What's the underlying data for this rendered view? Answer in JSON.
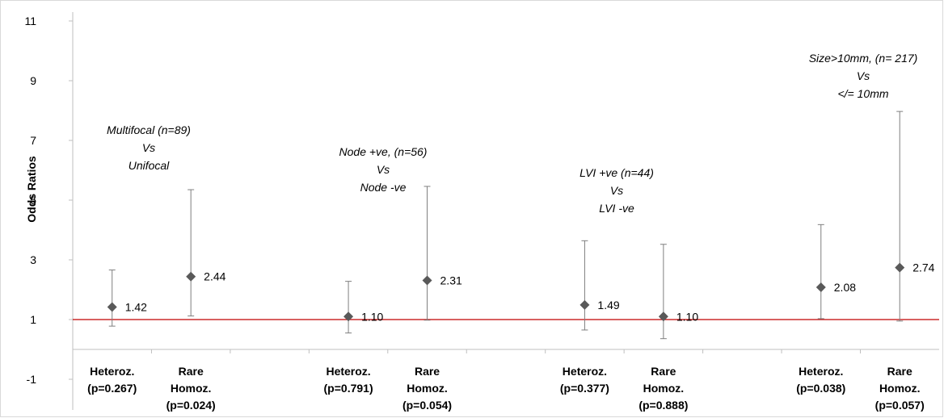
{
  "chart_data": {
    "type": "scatter",
    "ylabel": "Odds Ratios",
    "ylim": [
      -1,
      11
    ],
    "yticks": [
      -1,
      1,
      3,
      5,
      7,
      9,
      11
    ],
    "reference_line": {
      "y": 1,
      "color": "#c00000"
    },
    "marker_color": "#595959",
    "grid": false,
    "points": [
      {
        "lines": [
          "Heteroz.",
          "(p=0.267)"
        ],
        "or": 1.42,
        "label": "1.42",
        "ci": [
          0.78,
          2.66
        ]
      },
      {
        "lines": [
          "Rare",
          "Homoz.",
          "(p=0.024)"
        ],
        "or": 2.44,
        "label": "2.44",
        "ci": [
          1.12,
          5.35
        ]
      },
      {
        "lines": [
          "Heteroz.",
          "(p=0.791)"
        ],
        "or": 1.1,
        "label": "1.10",
        "ci": [
          0.55,
          2.28
        ]
      },
      {
        "lines": [
          "Rare",
          "Homoz.",
          "(p=0.054)"
        ],
        "or": 2.31,
        "label": "2.31",
        "ci": [
          0.98,
          5.46
        ]
      },
      {
        "lines": [
          "Heteroz.",
          "(p=0.377)"
        ],
        "or": 1.49,
        "label": "1.49",
        "ci": [
          0.65,
          3.64
        ]
      },
      {
        "lines": [
          "Rare",
          "Homoz.",
          "(p=0.888)"
        ],
        "or": 1.1,
        "label": "1.10",
        "ci": [
          0.36,
          3.52
        ]
      },
      {
        "lines": [
          "Heteroz.",
          "(p=0.038)"
        ],
        "or": 2.08,
        "label": "2.08",
        "ci": [
          1.03,
          4.18
        ]
      },
      {
        "lines": [
          "Rare",
          "Homoz.",
          "(p=0.057)"
        ],
        "or": 2.74,
        "label": "2.74",
        "ci": [
          0.95,
          7.97
        ]
      }
    ],
    "annotations": [
      {
        "lines": [
          "Multifocal  (n=89)",
          "Vs",
          "Unifocal"
        ]
      },
      {
        "lines": [
          "Node +ve, (n=56)",
          "Vs",
          "Node -ve"
        ]
      },
      {
        "lines": [
          "LVI +ve (n=44)",
          "Vs",
          "LVI -ve"
        ]
      },
      {
        "lines": [
          "Size>10mm, (n= 217)",
          "Vs",
          "</= 10mm"
        ]
      }
    ]
  }
}
